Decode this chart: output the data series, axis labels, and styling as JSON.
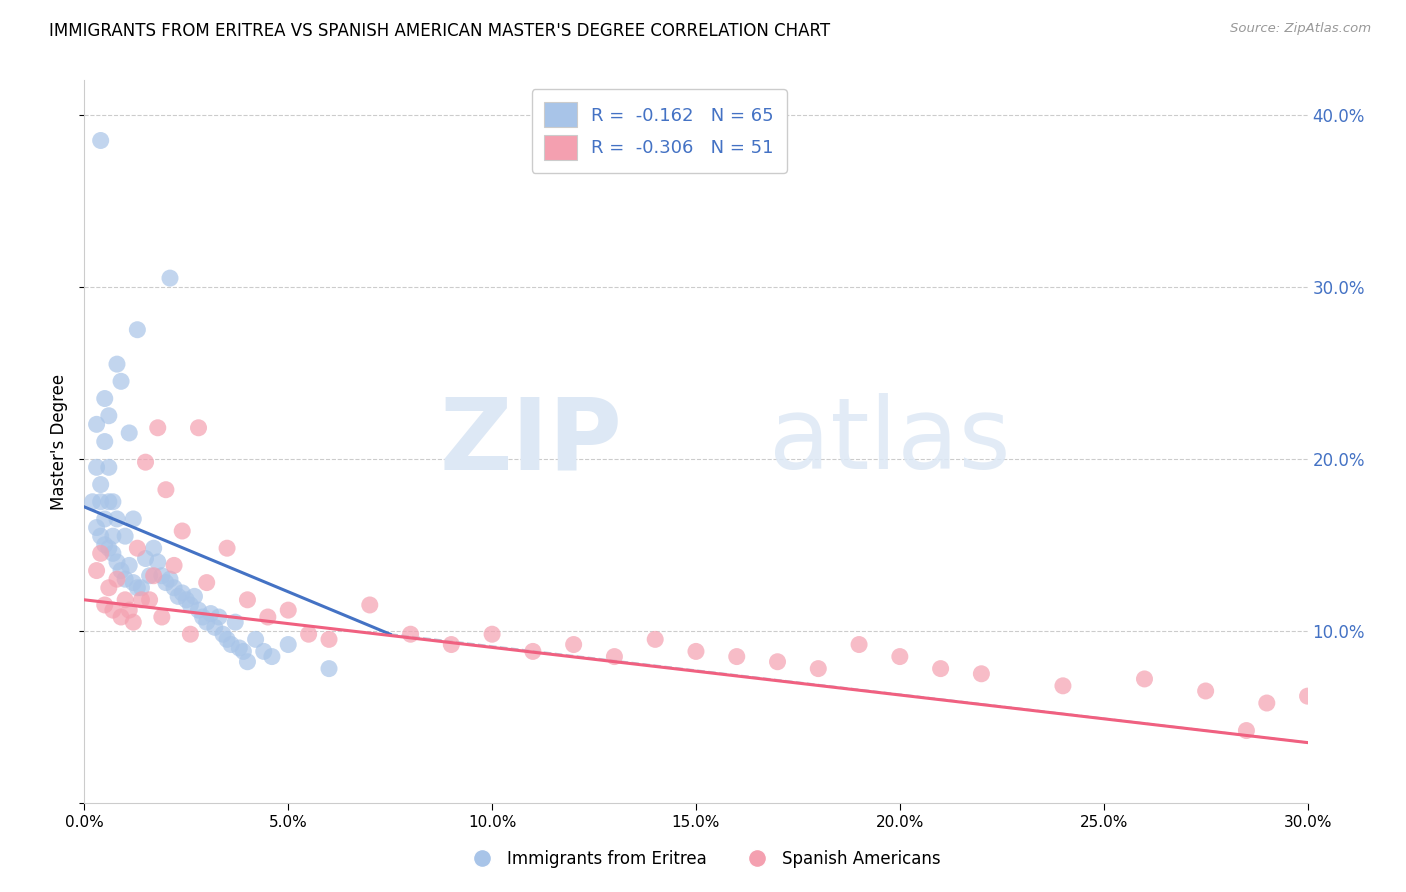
{
  "title": "IMMIGRANTS FROM ERITREA VS SPANISH AMERICAN MASTER'S DEGREE CORRELATION CHART",
  "source": "Source: ZipAtlas.com",
  "ylabel_label": "Master's Degree",
  "xlim": [
    0.0,
    0.3
  ],
  "ylim": [
    0.0,
    0.42
  ],
  "color_blue": "#a8c4e8",
  "color_pink": "#f4a0b0",
  "line_blue": "#4472c4",
  "line_pink": "#f06080",
  "line_dashed_color": "#b8c8d8",
  "background_color": "#ffffff",
  "blue_scatter_x": [
    0.004,
    0.013,
    0.021,
    0.008,
    0.005,
    0.009,
    0.006,
    0.011,
    0.003,
    0.002,
    0.004,
    0.007,
    0.003,
    0.005,
    0.006,
    0.008,
    0.01,
    0.012,
    0.004,
    0.005,
    0.006,
    0.007,
    0.003,
    0.004,
    0.005,
    0.006,
    0.007,
    0.008,
    0.009,
    0.01,
    0.011,
    0.012,
    0.013,
    0.014,
    0.015,
    0.016,
    0.017,
    0.018,
    0.019,
    0.02,
    0.021,
    0.022,
    0.023,
    0.024,
    0.025,
    0.026,
    0.027,
    0.028,
    0.029,
    0.03,
    0.031,
    0.032,
    0.033,
    0.034,
    0.035,
    0.036,
    0.037,
    0.038,
    0.039,
    0.04,
    0.042,
    0.044,
    0.046,
    0.05,
    0.06
  ],
  "blue_scatter_y": [
    0.385,
    0.275,
    0.305,
    0.255,
    0.235,
    0.245,
    0.225,
    0.215,
    0.195,
    0.175,
    0.185,
    0.175,
    0.22,
    0.21,
    0.195,
    0.165,
    0.155,
    0.165,
    0.175,
    0.165,
    0.175,
    0.155,
    0.16,
    0.155,
    0.15,
    0.148,
    0.145,
    0.14,
    0.135,
    0.13,
    0.138,
    0.128,
    0.125,
    0.125,
    0.142,
    0.132,
    0.148,
    0.14,
    0.132,
    0.128,
    0.13,
    0.125,
    0.12,
    0.122,
    0.118,
    0.115,
    0.12,
    0.112,
    0.108,
    0.105,
    0.11,
    0.102,
    0.108,
    0.098,
    0.095,
    0.092,
    0.105,
    0.09,
    0.088,
    0.082,
    0.095,
    0.088,
    0.085,
    0.092,
    0.078
  ],
  "pink_scatter_x": [
    0.003,
    0.004,
    0.005,
    0.006,
    0.007,
    0.008,
    0.009,
    0.01,
    0.011,
    0.012,
    0.013,
    0.014,
    0.015,
    0.016,
    0.017,
    0.018,
    0.019,
    0.02,
    0.022,
    0.024,
    0.026,
    0.028,
    0.03,
    0.035,
    0.04,
    0.045,
    0.05,
    0.055,
    0.06,
    0.07,
    0.08,
    0.09,
    0.1,
    0.11,
    0.12,
    0.13,
    0.14,
    0.15,
    0.16,
    0.17,
    0.18,
    0.19,
    0.2,
    0.21,
    0.22,
    0.24,
    0.26,
    0.275,
    0.29,
    0.3,
    0.285
  ],
  "pink_scatter_y": [
    0.135,
    0.145,
    0.115,
    0.125,
    0.112,
    0.13,
    0.108,
    0.118,
    0.112,
    0.105,
    0.148,
    0.118,
    0.198,
    0.118,
    0.132,
    0.218,
    0.108,
    0.182,
    0.138,
    0.158,
    0.098,
    0.218,
    0.128,
    0.148,
    0.118,
    0.108,
    0.112,
    0.098,
    0.095,
    0.115,
    0.098,
    0.092,
    0.098,
    0.088,
    0.092,
    0.085,
    0.095,
    0.088,
    0.085,
    0.082,
    0.078,
    0.092,
    0.085,
    0.078,
    0.075,
    0.068,
    0.072,
    0.065,
    0.058,
    0.062,
    0.042
  ],
  "blue_line_x": [
    0.0,
    0.075
  ],
  "blue_line_y": [
    0.172,
    0.098
  ],
  "pink_line_x": [
    0.0,
    0.3
  ],
  "pink_line_y": [
    0.118,
    0.035
  ],
  "dashed_line_x": [
    0.075,
    0.3
  ],
  "dashed_line_y": [
    0.098,
    0.035
  ]
}
